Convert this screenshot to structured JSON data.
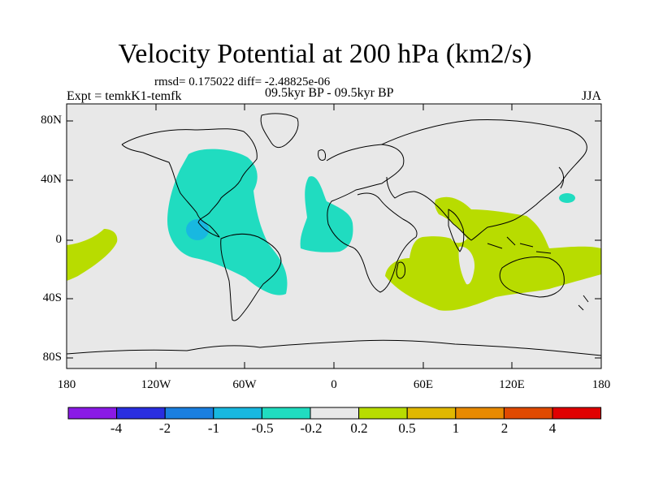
{
  "title": "Velocity Potential at 200 hPa (km2/s)",
  "stats": "rmsd= 0.175022 diff= -2.48825e-06",
  "experiment": "Expt = temkK1-temfk",
  "period": "09.5kyr BP - 09.5kyr BP",
  "season": "JJA",
  "y_ticks": [
    "80N",
    "40N",
    "0",
    "40S",
    "80S"
  ],
  "x_ticks": [
    "180",
    "120W",
    "60W",
    "0",
    "60E",
    "120E",
    "180"
  ],
  "colorbar": {
    "labels": [
      "-4",
      "-2",
      "-1",
      "-0.5",
      "-0.2",
      "0.2",
      "0.5",
      "1",
      "2",
      "4"
    ],
    "colors": [
      "#8a1ae6",
      "#2a2ee0",
      "#1a7fe0",
      "#18b8e0",
      "#20dcc0",
      "#e8e8e8",
      "#b8dc00",
      "#e0b800",
      "#e88a00",
      "#e04a00",
      "#e00000"
    ]
  },
  "colors": {
    "ocean": "#e8e8e8",
    "negative_anomaly": "#20dcc0",
    "strong_negative_anomaly": "#18b8e0",
    "positive_anomaly": "#b8dc00"
  }
}
